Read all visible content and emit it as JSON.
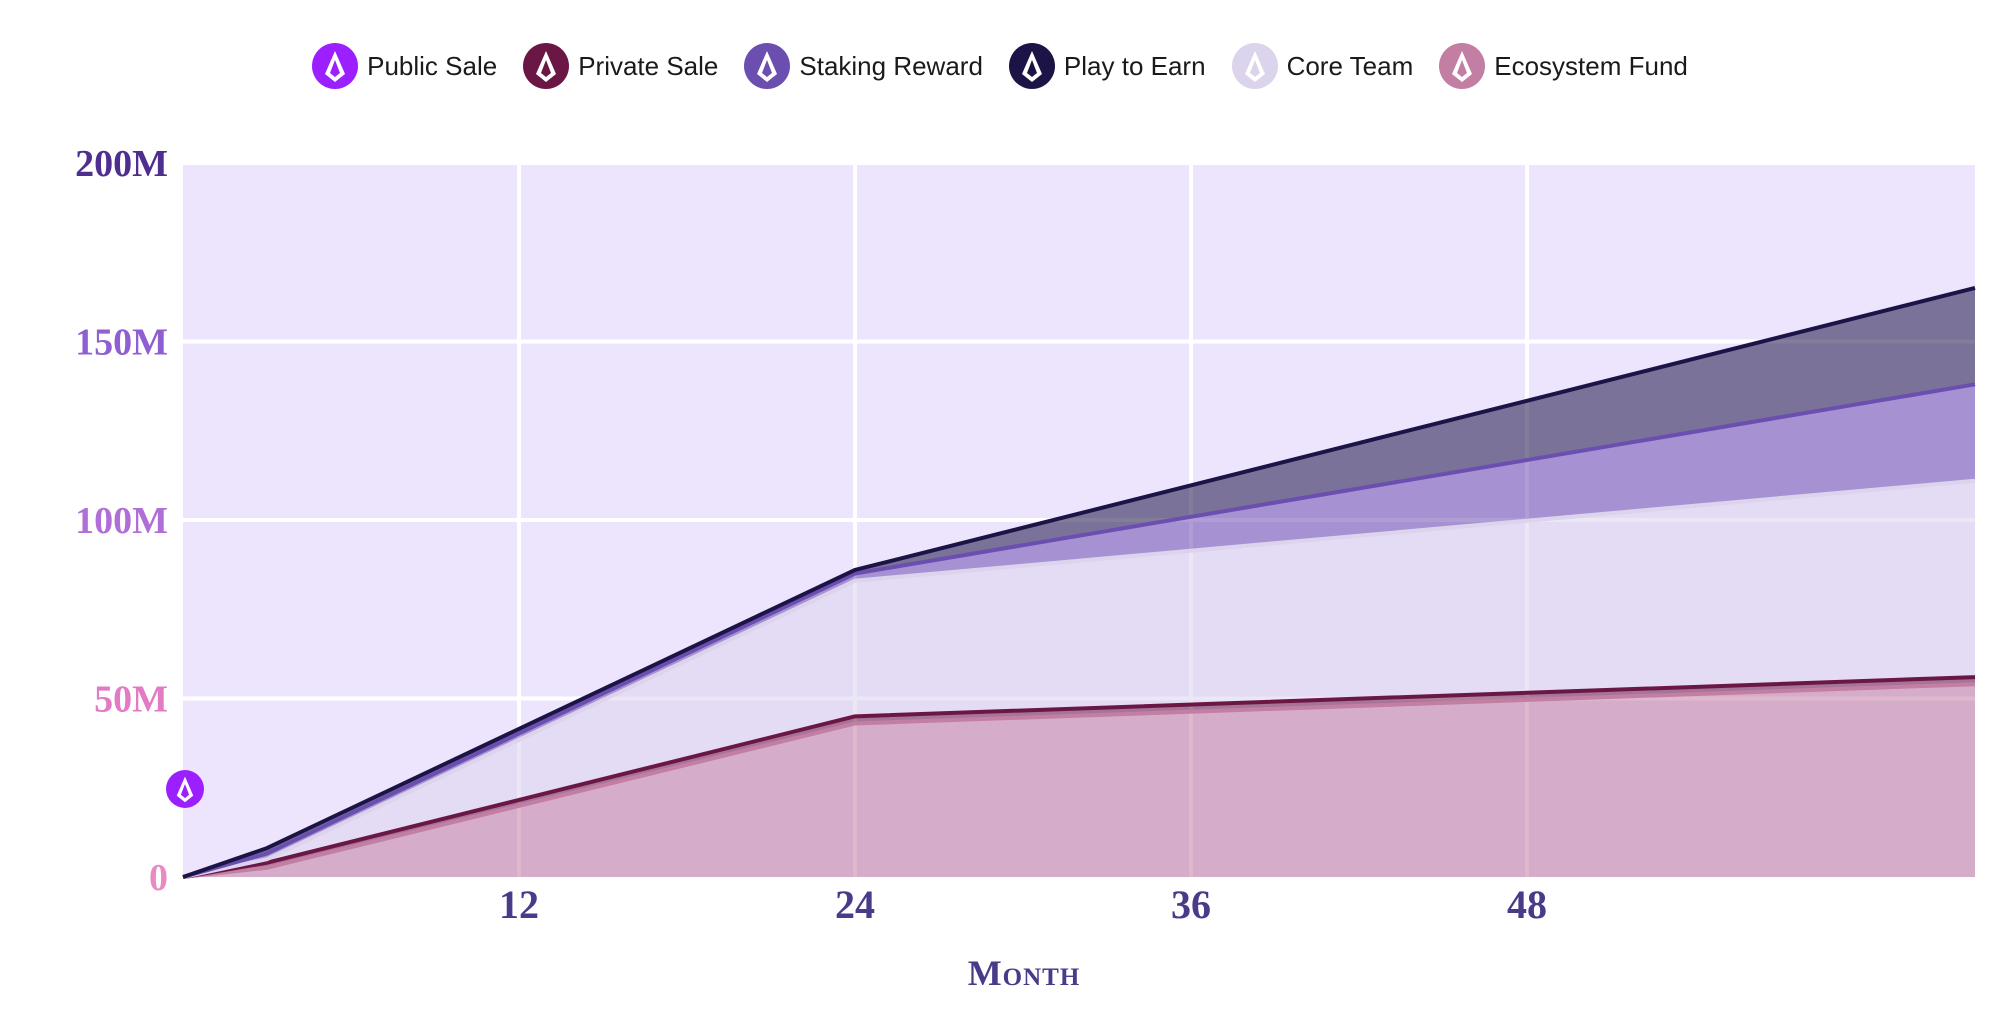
{
  "chart_data": {
    "type": "area",
    "stacked": true,
    "xlabel": "Month",
    "ylabel": "",
    "xlim": [
      0,
      64
    ],
    "ylim": [
      0,
      200000000
    ],
    "x_ticks": [
      12,
      24,
      36,
      48
    ],
    "x_tick_labels": [
      "12",
      "24",
      "36",
      "48"
    ],
    "y_ticks": [
      0,
      50000000,
      100000000,
      150000000,
      200000000
    ],
    "y_tick_labels": [
      "0",
      "50M",
      "100M",
      "150M",
      "200M"
    ],
    "y_tick_colors": [
      "#e98bc2",
      "#e27ac4",
      "#b06fd6",
      "#8f5fd1",
      "#4e2e8f"
    ],
    "grid": true,
    "legend": "top-center",
    "plot_background": "#ede4fd",
    "x": [
      0,
      3,
      24,
      64
    ],
    "series": [
      {
        "name": "Public Sale",
        "color": "#9b1fff",
        "values": [
          0,
          0,
          0,
          0
        ]
      },
      {
        "name": "Ecosystem Fund",
        "color": "#c27ea3",
        "values": [
          0,
          2600000,
          43000000,
          54000000
        ]
      },
      {
        "name": "Private Sale",
        "color": "#6b1746",
        "values": [
          0,
          1400000,
          2000000,
          2000000
        ]
      },
      {
        "name": "Core Team",
        "color": "#dcd3ec",
        "values": [
          0,
          1000000,
          38000000,
          55000000
        ]
      },
      {
        "name": "Staking Reward",
        "color": "#6b4fb0",
        "values": [
          0,
          1600000,
          2000000,
          27000000
        ]
      },
      {
        "name": "Play to Earn",
        "color": "#1c1446",
        "values": [
          0,
          1500000,
          1000000,
          27000000
        ]
      }
    ],
    "legend_order": [
      "Public Sale",
      "Private Sale",
      "Staking Reward",
      "Play to Earn",
      "Core Team",
      "Ecosystem Fund"
    ]
  }
}
